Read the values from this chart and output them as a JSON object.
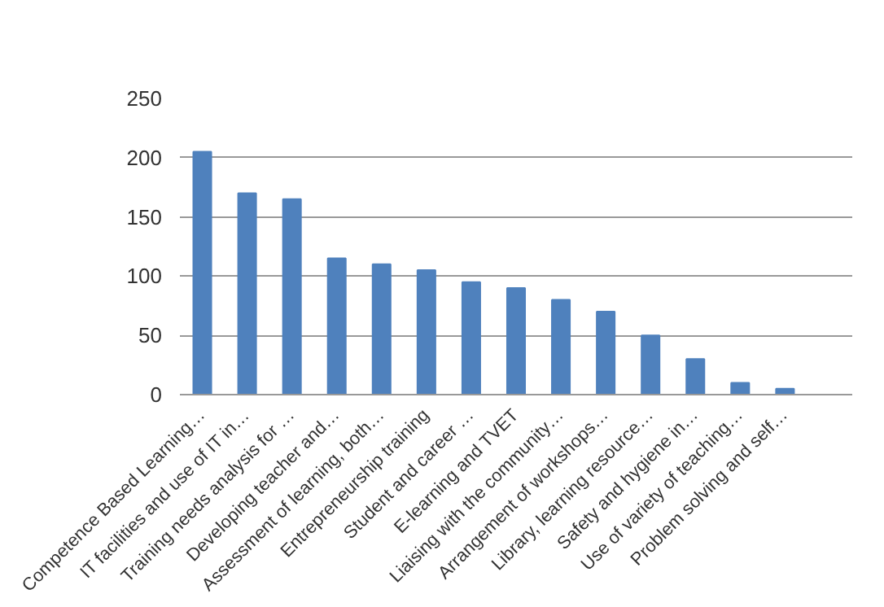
{
  "chart_data": {
    "type": "bar",
    "categories": [
      "Competence Based Learning…",
      "IT facilities and use of IT in…",
      "Training needs analysis for …",
      "Developing teacher and…",
      "Assessment of learning, both…",
      "Entrepreneurship training",
      "Student and career …",
      "E-learning and TVET",
      "Liaising with the community…",
      "Arrangement of workshops…",
      "Library, learning resource…",
      "Safety and hygiene in…",
      "Use of variety of teaching…",
      "Problem solving and self…",
      null
    ],
    "values": [
      205,
      170,
      165,
      115,
      110,
      105,
      95,
      90,
      80,
      70,
      50,
      30,
      10,
      5,
      0
    ],
    "color": "#4f81bd",
    "ylim": [
      0,
      250
    ],
    "yticks": [
      0,
      50,
      100,
      150,
      200,
      250
    ],
    "grid": "y"
  }
}
